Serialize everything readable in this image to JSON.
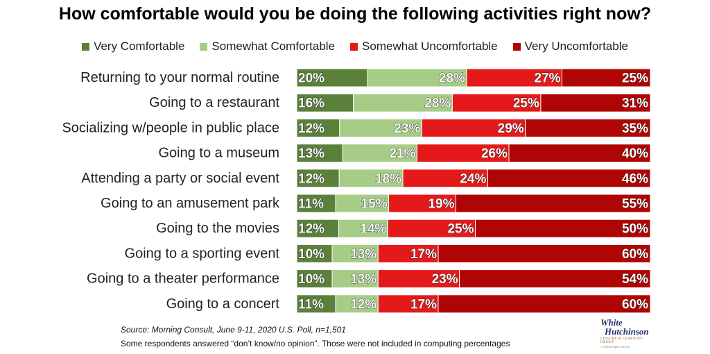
{
  "title": "How comfortable would you be doing the following activities right now?",
  "legend": [
    {
      "label": "Very Comfortable",
      "color": "#5a803a"
    },
    {
      "label": "Somewhat Comfortable",
      "color": "#a6cc86"
    },
    {
      "label": "Somewhat Uncomfortable",
      "color": "#e41a1a"
    },
    {
      "label": "Very Uncomfortable",
      "color": "#b00505"
    }
  ],
  "chart_data": {
    "type": "bar",
    "orientation": "horizontal",
    "stacked": true,
    "percent_stacked": true,
    "categories": [
      "Returning to your normal routine",
      "Going to a restaurant",
      "Socializing w/people in public place",
      "Going to a museum",
      "Attending a party or social event",
      "Going to an amusement park",
      "Going to the movies",
      "Going to a sporting event",
      "Going to a theater performance",
      "Going to a concert"
    ],
    "series": [
      {
        "name": "Very Comfortable",
        "values": [
          20,
          16,
          12,
          13,
          12,
          11,
          12,
          10,
          10,
          11
        ]
      },
      {
        "name": "Somewhat Comfortable",
        "values": [
          28,
          28,
          23,
          21,
          18,
          15,
          14,
          13,
          13,
          12
        ]
      },
      {
        "name": "Somewhat Uncomfortable",
        "values": [
          27,
          25,
          29,
          26,
          24,
          19,
          25,
          17,
          23,
          17
        ]
      },
      {
        "name": "Very Uncomfortable",
        "values": [
          25,
          31,
          35,
          40,
          46,
          55,
          50,
          60,
          54,
          60
        ]
      }
    ],
    "value_suffix": "%",
    "legend_position": "top",
    "grid": false
  },
  "source": "Source: Morning Consult, June 9-11, 2020 U.S. Poll, n=1,501",
  "note": "Some respondents answered “don’t know/no opinion”. Those were not included in computing percentages",
  "logo": {
    "line1": "White",
    "line2": "Hutchinson",
    "line3": "LEISURE & LEARNING GROUP",
    "line4": "© 2020 all rights reserved"
  }
}
